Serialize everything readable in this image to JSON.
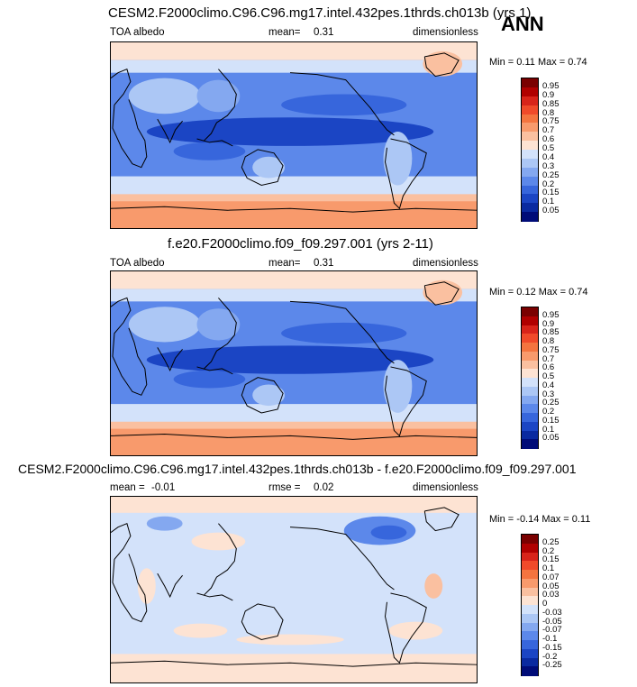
{
  "season": "ANN",
  "panels": [
    {
      "title": "CESM2.F2000climo.C96.C96.mg17.intel.432pes.1thrds.ch013b (yrs 1)",
      "left_label": "TOA albedo",
      "stat_label": "mean=",
      "stat_value": "0.31",
      "units": "dimensionless",
      "min_label": "Min =",
      "min_value": "0.11",
      "max_label": "Max =",
      "max_value": "0.74",
      "colorbar_labels": [
        "0.95",
        "0.9",
        "0.85",
        "0.8",
        "0.75",
        "0.7",
        "0.6",
        "0.5",
        "0.4",
        "0.3",
        "0.25",
        "0.2",
        "0.15",
        "0.1",
        "0.05"
      ],
      "colors": [
        "#7a0000",
        "#b00000",
        "#d8241a",
        "#f04a2a",
        "#f4743f",
        "#f89a6c",
        "#fac0a0",
        "#fde3d3",
        "#d3e2fa",
        "#acc7f5",
        "#84a8f0",
        "#5c88ea",
        "#3766dc",
        "#1b45c4",
        "#0a2aa0",
        "#000c78"
      ]
    },
    {
      "title": "f.e20.F2000climo.f09_f09.297.001 (yrs 2-11)",
      "left_label": "TOA albedo",
      "stat_label": "mean=",
      "stat_value": "0.31",
      "units": "dimensionless",
      "min_label": "Min =",
      "min_value": "0.12",
      "max_label": "Max =",
      "max_value": "0.74",
      "colorbar_labels": [
        "0.95",
        "0.9",
        "0.85",
        "0.8",
        "0.75",
        "0.7",
        "0.6",
        "0.5",
        "0.4",
        "0.3",
        "0.25",
        "0.2",
        "0.15",
        "0.1",
        "0.05"
      ],
      "colors": [
        "#7a0000",
        "#b00000",
        "#d8241a",
        "#f04a2a",
        "#f4743f",
        "#f89a6c",
        "#fac0a0",
        "#fde3d3",
        "#d3e2fa",
        "#acc7f5",
        "#84a8f0",
        "#5c88ea",
        "#3766dc",
        "#1b45c4",
        "#0a2aa0",
        "#000c78"
      ]
    },
    {
      "title": "CESM2.F2000climo.C96.C96.mg17.intel.432pes.1thrds.ch013b - f.e20.F2000climo.f09_f09.297.001",
      "left_label": "mean =",
      "left_value": "-0.01",
      "stat_label": "rmse =",
      "stat_value": "0.02",
      "units": "dimensionless",
      "min_label": "Min =",
      "min_value": "-0.14",
      "max_label": "Max =",
      "max_value": "0.11",
      "colorbar_labels": [
        "0.25",
        "0.2",
        "0.15",
        "0.1",
        "0.07",
        "0.05",
        "0.03",
        "0",
        "-0.03",
        "-0.05",
        "-0.07",
        "-0.1",
        "-0.15",
        "-0.2",
        "-0.25"
      ],
      "colors": [
        "#7a0000",
        "#b00000",
        "#d8241a",
        "#f04a2a",
        "#f4743f",
        "#f89a6c",
        "#fac0a0",
        "#fde3d3",
        "#d3e2fa",
        "#acc7f5",
        "#84a8f0",
        "#5c88ea",
        "#3766dc",
        "#1b45c4",
        "#0a2aa0",
        "#000c78"
      ]
    }
  ],
  "chart_data": [
    {
      "type": "heatmap",
      "title": "CESM2.F2000climo.C96.C96.mg17.intel.432pes.1thrds.ch013b (yrs 1)",
      "variable": "TOA albedo",
      "units": "dimensionless",
      "mean": 0.31,
      "min": 0.11,
      "max": 0.74,
      "levels": [
        0.05,
        0.1,
        0.15,
        0.2,
        0.25,
        0.3,
        0.4,
        0.5,
        0.6,
        0.7,
        0.75,
        0.8,
        0.85,
        0.9,
        0.95
      ]
    },
    {
      "type": "heatmap",
      "title": "f.e20.F2000climo.f09_f09.297.001 (yrs 2-11)",
      "variable": "TOA albedo",
      "units": "dimensionless",
      "mean": 0.31,
      "min": 0.12,
      "max": 0.74,
      "levels": [
        0.05,
        0.1,
        0.15,
        0.2,
        0.25,
        0.3,
        0.4,
        0.5,
        0.6,
        0.7,
        0.75,
        0.8,
        0.85,
        0.9,
        0.95
      ]
    },
    {
      "type": "heatmap",
      "title": "CESM2.F2000climo.C96.C96.mg17.intel.432pes.1thrds.ch013b - f.e20.F2000climo.f09_f09.297.001",
      "units": "dimensionless",
      "mean": -0.01,
      "rmse": 0.02,
      "min": -0.14,
      "max": 0.11,
      "levels": [
        -0.25,
        -0.2,
        -0.15,
        -0.1,
        -0.07,
        -0.05,
        -0.03,
        0,
        0.03,
        0.05,
        0.07,
        0.1,
        0.15,
        0.2,
        0.25
      ]
    }
  ]
}
